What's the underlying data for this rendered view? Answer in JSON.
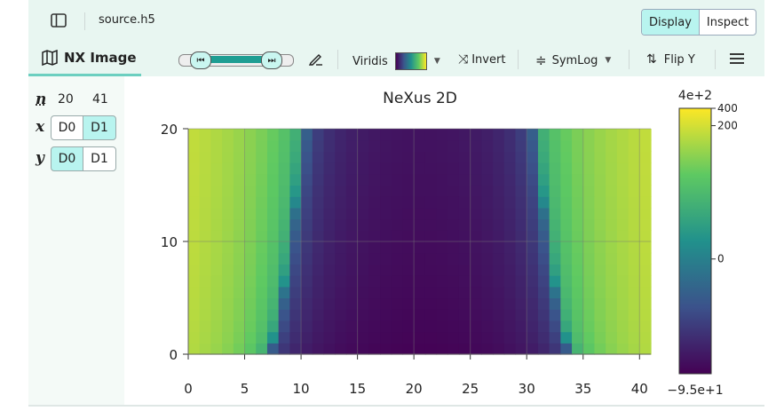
{
  "header": {
    "filename": "source.h5",
    "display_label": "Display",
    "inspect_label": "Inspect"
  },
  "toolbar": {
    "tab_label": "NX Image",
    "colormap_label": "Viridis",
    "invert_label": "Invert",
    "scale_label": "SymLog",
    "flip_label": "Flip Y"
  },
  "dims": {
    "n_label": "n",
    "n_values": [
      "20",
      "41"
    ],
    "x_label": "x",
    "y_label": "y",
    "buttons": [
      "D0",
      "D1"
    ],
    "x_selected": "D1",
    "y_selected": "D0"
  },
  "colors": {
    "accent": "#b8f4ef",
    "panel_bg": "#e8f6f1",
    "active_tab_underline": "#6ccfc0"
  },
  "chart_data": {
    "type": "heatmap",
    "title": "NeXus 2D",
    "x_ticks": [
      0,
      5,
      10,
      15,
      20,
      25,
      30,
      35,
      40
    ],
    "y_ticks": [
      0,
      10,
      20
    ],
    "xlim": [
      0,
      41
    ],
    "ylim": [
      0,
      20
    ],
    "grid": true,
    "colormap": "viridis",
    "scale": "symlog",
    "color_range": [
      -95,
      400
    ],
    "colorbar_top_label": "4e+2",
    "colorbar_bottom_label": "−9.5e+1",
    "colorbar_ticks": [
      "400",
      "200",
      "0"
    ]
  }
}
